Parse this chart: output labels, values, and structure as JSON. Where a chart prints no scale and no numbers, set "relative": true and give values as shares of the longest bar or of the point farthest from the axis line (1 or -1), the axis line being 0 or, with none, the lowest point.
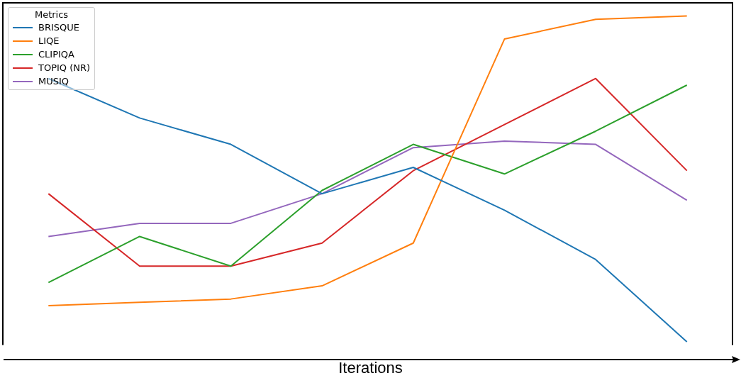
{
  "chart_data": {
    "type": "line",
    "relative": true,
    "xlabel": "Iterations",
    "legend_title": "Metrics",
    "legend": "top left",
    "grid": false,
    "marker": "none",
    "categories": [
      null,
      null,
      null,
      null,
      null,
      null,
      null,
      null
    ],
    "series": [
      {
        "name": "BRISQUE",
        "color": "#1f77b4",
        "values": [
          0.81,
          0.69,
          0.61,
          0.46,
          0.54,
          0.41,
          0.26,
          0.01
        ]
      },
      {
        "name": "LIQE",
        "color": "#ff7f0e",
        "values": [
          0.12,
          0.13,
          0.14,
          0.18,
          0.31,
          0.93,
          0.99,
          1
        ]
      },
      {
        "name": "CLIPIQA",
        "color": "#2ca02c",
        "values": [
          0.19,
          0.33,
          0.24,
          0.47,
          0.61,
          0.52,
          0.65,
          0.79
        ]
      },
      {
        "name": "TOPIQ (NR)",
        "color": "#d62728",
        "values": [
          0.46,
          0.24,
          0.24,
          0.31,
          0.53,
          0.67,
          0.81,
          0.53
        ]
      },
      {
        "name": "MUSIQ",
        "color": "#9467bd",
        "values": [
          0.33,
          0.37,
          0.37,
          0.46,
          0.6,
          0.62,
          0.61,
          0.44
        ]
      }
    ]
  }
}
